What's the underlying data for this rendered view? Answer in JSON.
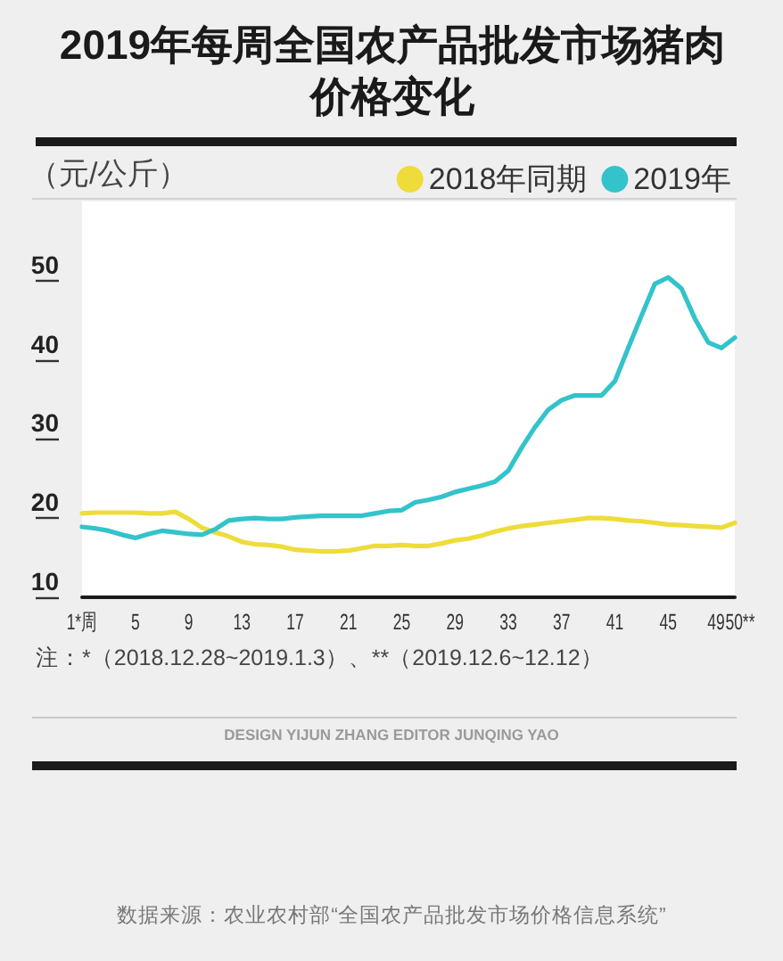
{
  "chart_data": {
    "type": "line",
    "title": "2019年每周全国农产品批发市场猪肉价格变化",
    "ylabel": "（元/公斤）",
    "x": [
      1,
      2,
      3,
      4,
      5,
      6,
      7,
      8,
      9,
      10,
      11,
      12,
      13,
      14,
      15,
      16,
      17,
      18,
      19,
      20,
      21,
      22,
      23,
      24,
      25,
      26,
      27,
      28,
      29,
      30,
      31,
      32,
      33,
      34,
      35,
      36,
      37,
      38,
      39,
      40,
      41,
      42,
      43,
      44,
      45,
      46,
      47,
      48,
      49,
      50
    ],
    "series": [
      {
        "name": "2018年同期",
        "color": "#eedc3a",
        "values": [
          20.6,
          20.7,
          20.7,
          20.7,
          20.7,
          20.6,
          20.6,
          20.8,
          19.9,
          18.8,
          18.2,
          17.7,
          17.0,
          16.7,
          16.6,
          16.4,
          16.0,
          15.9,
          15.8,
          15.8,
          15.9,
          16.2,
          16.5,
          16.5,
          16.6,
          16.5,
          16.5,
          16.8,
          17.2,
          17.4,
          17.8,
          18.3,
          18.7,
          19.0,
          19.2,
          19.4,
          19.6,
          19.8,
          20.0,
          20.0,
          19.9,
          19.7,
          19.6,
          19.4,
          19.2,
          19.1,
          19.0,
          18.9,
          18.8,
          19.4
        ]
      },
      {
        "name": "2019年",
        "color": "#33c3cb",
        "values": [
          18.9,
          18.7,
          18.4,
          17.9,
          17.5,
          18.0,
          18.4,
          18.2,
          18.0,
          17.9,
          18.6,
          19.7,
          19.9,
          20.0,
          19.9,
          19.9,
          20.1,
          20.2,
          20.3,
          20.3,
          20.3,
          20.3,
          20.6,
          20.9,
          21.0,
          22.0,
          22.3,
          22.7,
          23.3,
          23.7,
          24.1,
          24.6,
          26.0,
          28.9,
          31.5,
          33.7,
          34.9,
          35.5,
          35.5,
          35.5,
          37.3,
          41.5,
          45.6,
          49.6,
          50.4,
          49.0,
          45.2,
          42.2,
          41.5,
          42.8
        ]
      }
    ],
    "xlim": [
      1,
      50
    ],
    "xticks": [
      {
        "value": 1,
        "label": "1*周"
      },
      5,
      9,
      13,
      17,
      21,
      25,
      29,
      33,
      37,
      41,
      45,
      49,
      {
        "value": 50,
        "label": "50**"
      }
    ],
    "ylim": [
      10,
      60
    ],
    "yticks": [
      10,
      20,
      30,
      40,
      50
    ],
    "grid": false,
    "legend": "top right",
    "marker": "none",
    "line_style": "solid",
    "annotations": [
      "注：*（2018.12.28~2019.1.3）、**（2019.12.6~12.12）",
      "DESIGN YIJUN ZHANG EDITOR JUNQING YAO",
      "数据来源：农业农村部“全国农产品批发市场价格信息系统”"
    ]
  }
}
